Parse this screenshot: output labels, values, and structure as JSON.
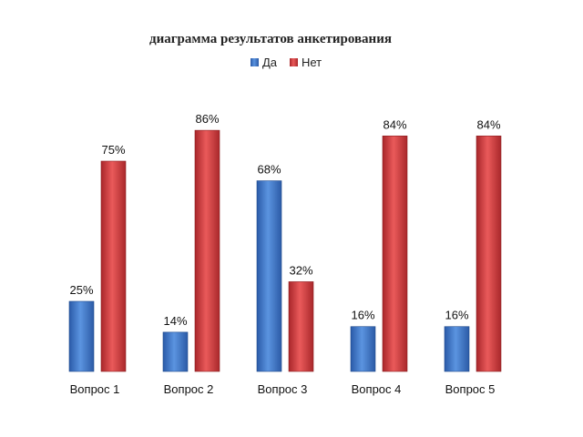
{
  "chart_data": {
    "type": "bar",
    "title": "диаграмма результатов анкетирования",
    "categories": [
      "Вопрос 1",
      "Вопрос 2",
      "Вопрос 3",
      "Вопрос 4",
      "Вопрос 5"
    ],
    "series": [
      {
        "name": "Да",
        "values": [
          25,
          14,
          68,
          16,
          16
        ],
        "labels": [
          "25%",
          "14%",
          "68%",
          "16%",
          "16%"
        ],
        "color": "#3b73c4"
      },
      {
        "name": "Нет",
        "values": [
          75,
          86,
          32,
          84,
          84
        ],
        "labels": [
          "75%",
          "86%",
          "32%",
          "84%",
          "84%"
        ],
        "color": "#d0393b"
      }
    ],
    "ylim": [
      0,
      100
    ],
    "grid": false,
    "legend": "top"
  }
}
